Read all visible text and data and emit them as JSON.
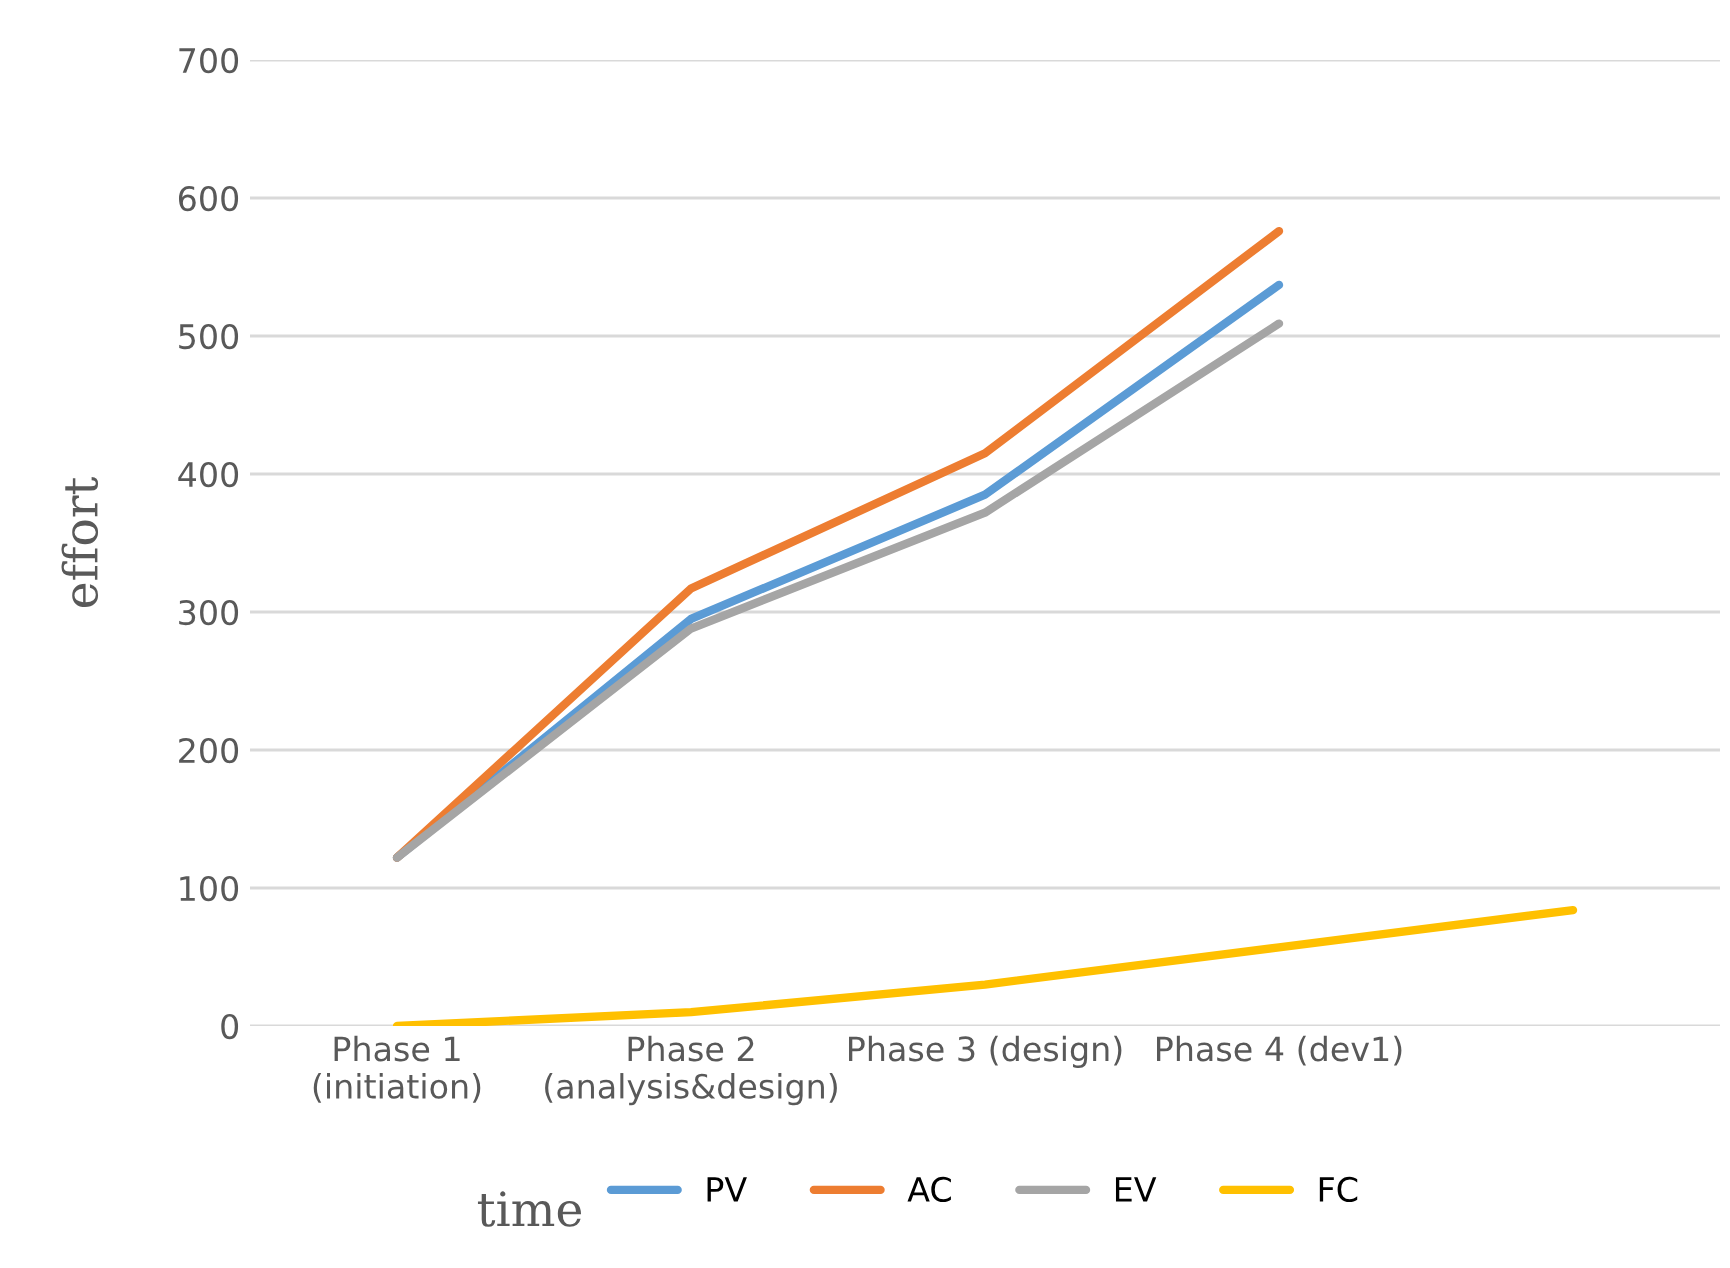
{
  "chart_data": {
    "type": "line",
    "xlabel": "time",
    "ylabel": "effort",
    "categories": [
      "Phase 1\n(initiation)",
      "Phase 2\n(analysis&design)",
      "Phase 3 (design)",
      "Phase 4 (dev1)",
      null
    ],
    "series": [
      {
        "name": "PV",
        "color": "#5b9bd5",
        "values": [
          122,
          295,
          385,
          537,
          null
        ]
      },
      {
        "name": "AC",
        "color": "#ed7d31",
        "values": [
          122,
          317,
          415,
          576,
          null
        ]
      },
      {
        "name": "EV",
        "color": "#a5a5a5",
        "values": [
          122,
          288,
          372,
          509,
          null
        ]
      },
      {
        "name": "FC",
        "color": "#ffc000",
        "values": [
          0,
          10,
          30,
          57,
          84
        ]
      }
    ],
    "ylim": [
      0,
      700
    ],
    "yticks": [
      0,
      100,
      200,
      300,
      400,
      500,
      600,
      700
    ],
    "grid": "y",
    "legend": "bottom",
    "marker": "none",
    "line_style": "solid"
  }
}
